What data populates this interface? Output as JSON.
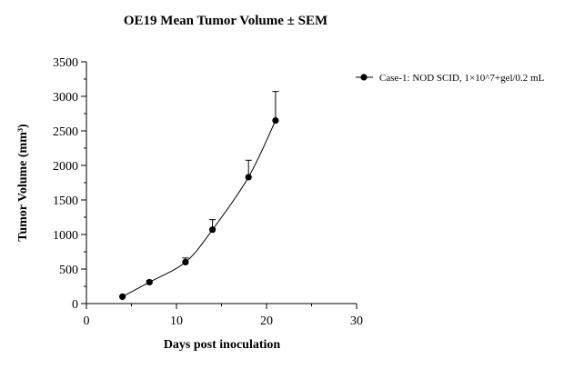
{
  "chart_data": {
    "type": "line",
    "title": "OE19 Mean Tumor Volume ± SEM",
    "xlabel": "Days post inoculation",
    "ylabel": "Tumor Volume (mm³)",
    "xlim": [
      0,
      30
    ],
    "ylim": [
      0,
      3500
    ],
    "xticks": [
      "0",
      "10",
      "20",
      "30"
    ],
    "yticks": [
      "0",
      "500",
      "1000",
      "1500",
      "2000",
      "2500",
      "3000",
      "3500"
    ],
    "grid": false,
    "legend_position": "top-right",
    "series": [
      {
        "name": "Case-1: NOD SCID, 1×10^7+gel/0.2 mL",
        "color": "#000000",
        "marker": "circle",
        "x": [
          4,
          7,
          11,
          14,
          18,
          21
        ],
        "y": [
          100,
          310,
          600,
          1070,
          1830,
          2650
        ],
        "sem": [
          10,
          25,
          60,
          145,
          245,
          420
        ]
      }
    ]
  }
}
